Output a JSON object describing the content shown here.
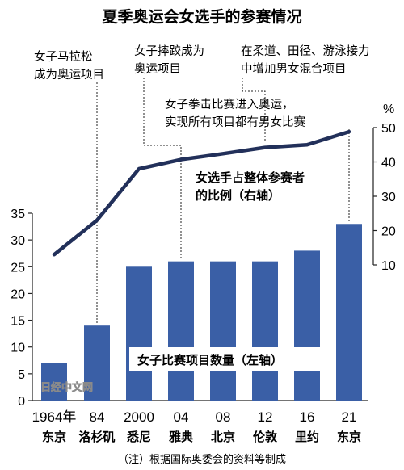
{
  "title": "夏季奥运会女选手的参赛情况",
  "annotations": {
    "marathon": [
      "女子马拉松",
      "成为奥运项目"
    ],
    "wrestling": [
      "女子摔跤成为",
      "奥运项目"
    ],
    "mixed": [
      "在柔道、田径、游泳接力",
      "中增加男女混合项目"
    ],
    "boxing": [
      "女子拳击比赛进入奥运，",
      "实现所有项目都有男女比赛"
    ]
  },
  "line_label": [
    "女选手占整体参赛者",
    "的比例（右轴）"
  ],
  "bar_label": "女子比赛项目数量（左轴）",
  "right_unit": "%",
  "note": "（注）根据国际奥委会的资料等制成",
  "watermark": "日经中文网",
  "colors": {
    "bar": "#3a5fa6",
    "line": "#22305a",
    "label_bg": "#ffffff"
  },
  "chart_data": {
    "type": "bar+line",
    "categories": [
      "1964年",
      "84",
      "2000",
      "04",
      "08",
      "12",
      "16",
      "21"
    ],
    "cities": [
      "东京",
      "洛杉矶",
      "悉尼",
      "雅典",
      "北京",
      "伦敦",
      "里约",
      "东京"
    ],
    "left_axis": {
      "min": 0,
      "max": 35,
      "ticks": [
        0,
        5,
        10,
        15,
        20,
        25,
        30,
        35
      ]
    },
    "right_axis": {
      "min": 10,
      "max": 50,
      "ticks": [
        10,
        20,
        30,
        40,
        50
      ],
      "unit": "%"
    },
    "series": [
      {
        "name": "女子比赛项目数量（左轴）",
        "kind": "bar",
        "axis": "left",
        "values": [
          7,
          14,
          25,
          26,
          26,
          26,
          28,
          33
        ]
      },
      {
        "name": "女选手占整体参赛者的比例（右轴）",
        "kind": "line",
        "axis": "right",
        "values": [
          13,
          23,
          38,
          40.7,
          42.4,
          44.2,
          45,
          48.8
        ]
      }
    ]
  }
}
